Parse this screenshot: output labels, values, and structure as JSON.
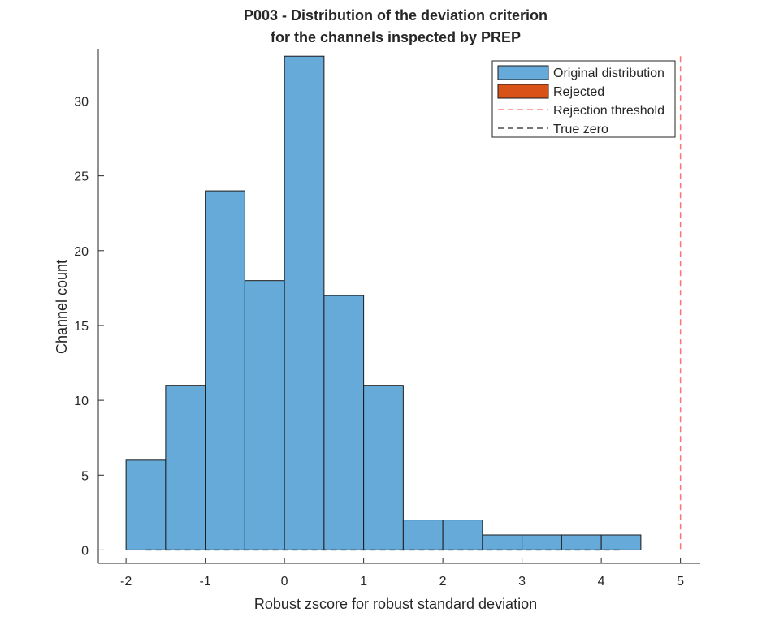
{
  "chart_data": {
    "type": "bar",
    "title_line1": "P003 - Distribution of the deviation criterion",
    "title_line2": "for the channels inspected by PREP",
    "xlabel": "Robust zscore for robust standard deviation",
    "ylabel": "Channel count",
    "xlim": [
      -2.35,
      5.25
    ],
    "ylim": [
      -0.9,
      33.5
    ],
    "x_ticks": [
      -2,
      -1,
      0,
      1,
      2,
      3,
      4,
      5
    ],
    "y_ticks": [
      0,
      5,
      10,
      15,
      20,
      25,
      30
    ],
    "bin_edges": [
      -2,
      -1.5,
      -1,
      -0.5,
      0,
      0.5,
      1,
      1.5,
      2,
      2.5,
      3,
      3.5,
      4,
      4.5
    ],
    "counts": [
      6,
      11,
      24,
      18,
      33,
      17,
      11,
      2,
      2,
      1,
      1,
      1,
      1
    ],
    "rejected_counts": [],
    "rejection_threshold": {
      "x": 5,
      "y_range": [
        0,
        33
      ]
    },
    "true_zero_line": {
      "y": 0,
      "x_range": [
        -1.75,
        4.25
      ]
    },
    "grid": false,
    "legend_position": "top-right",
    "legend": [
      {
        "key": "original",
        "label": "Original distribution"
      },
      {
        "key": "rejected",
        "label": "Rejected"
      },
      {
        "key": "threshold",
        "label": "Rejection threshold"
      },
      {
        "key": "zero",
        "label": "True zero"
      }
    ],
    "colors": {
      "original": "#66aad9",
      "rejected": "#d95218",
      "threshold": "#ff7373",
      "zero": "#262626",
      "edge": "#1a1a1a",
      "axis": "#262626"
    }
  }
}
